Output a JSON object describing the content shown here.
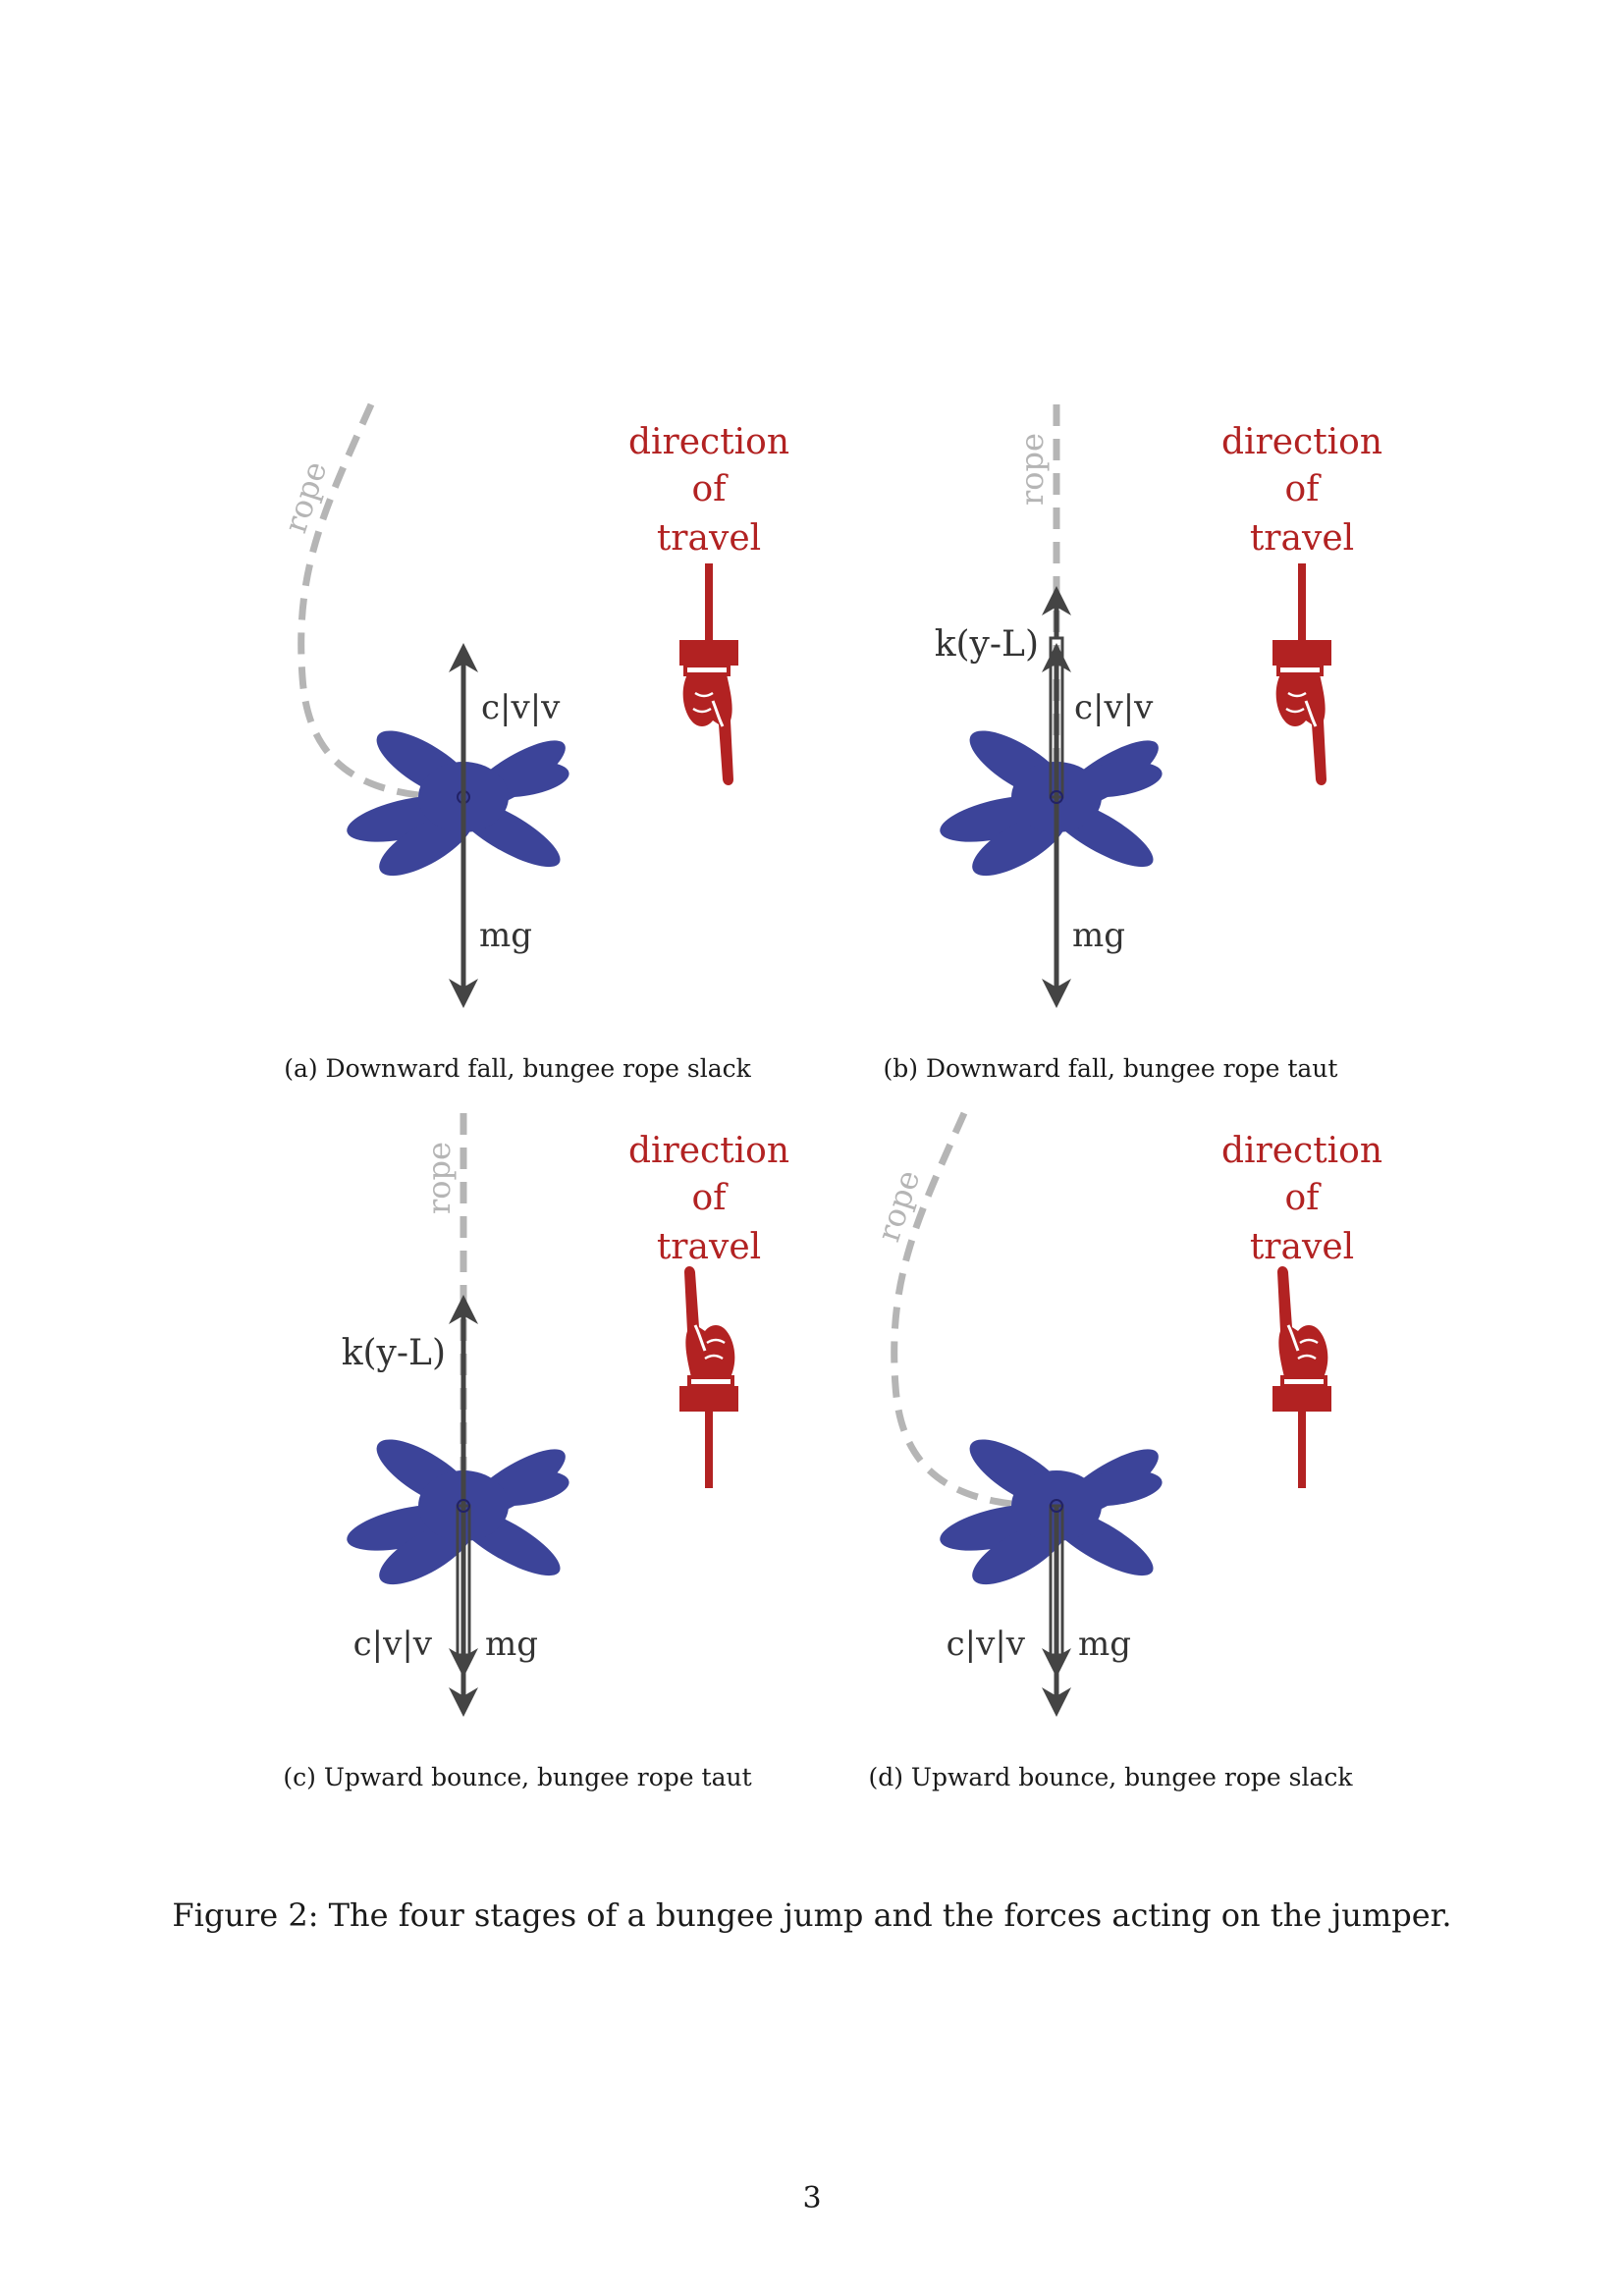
{
  "panels": [
    {
      "id": "a",
      "caption": "(a) Downward fall, bungee rope slack",
      "rope_label": "rope",
      "direction_label": [
        "direction",
        "of",
        "travel"
      ],
      "direction": "down",
      "rope_state": "slack",
      "force_labels": {
        "drag": "c|v|v",
        "gravity": "mg"
      }
    },
    {
      "id": "b",
      "caption": "(b) Downward fall, bungee rope taut",
      "rope_label": "rope",
      "direction_label": [
        "direction",
        "of",
        "travel"
      ],
      "direction": "down",
      "rope_state": "taut",
      "force_labels": {
        "spring": "k(y-L)",
        "drag": "c|v|v",
        "gravity": "mg"
      }
    },
    {
      "id": "c",
      "caption": "(c) Upward bounce, bungee rope taut",
      "rope_label": "rope",
      "direction_label": [
        "direction",
        "of",
        "travel"
      ],
      "direction": "up",
      "rope_state": "taut",
      "force_labels": {
        "spring": "k(y-L)",
        "drag": "c|v|v",
        "gravity": "mg"
      }
    },
    {
      "id": "d",
      "caption": "(d) Upward bounce, bungee rope slack",
      "rope_label": "rope",
      "direction_label": [
        "direction",
        "of",
        "travel"
      ],
      "direction": "up",
      "rope_state": "slack",
      "force_labels": {
        "drag": "c|v|v",
        "gravity": "mg"
      }
    }
  ],
  "figure_caption": "Figure 2: The four stages of a bungee jump and the forces acting on the jumper.",
  "page_number": "3",
  "colors": {
    "jumper": "#3c4499",
    "arrow": "#444444",
    "rope": "#b5b5b5",
    "direction": "#b22222"
  }
}
